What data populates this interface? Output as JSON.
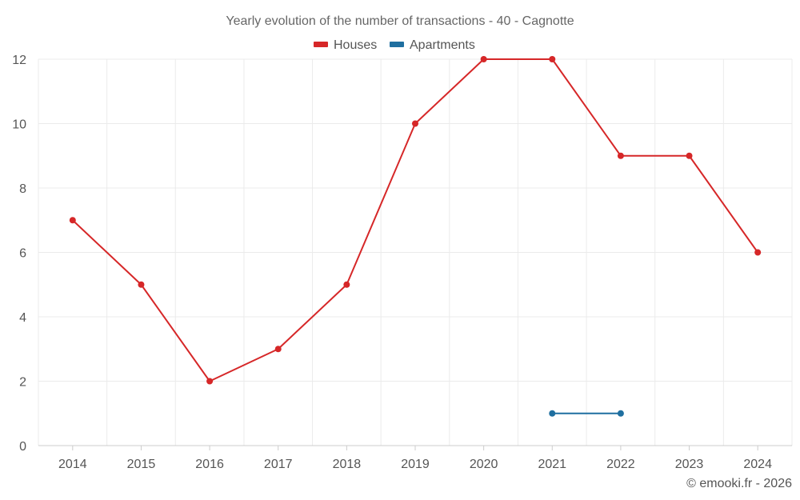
{
  "chart_data": {
    "type": "line",
    "title": "Yearly evolution of the number of transactions - 40 - Cagnotte",
    "categories": [
      "2014",
      "2015",
      "2016",
      "2017",
      "2018",
      "2019",
      "2020",
      "2021",
      "2022",
      "2023",
      "2024"
    ],
    "series": [
      {
        "name": "Houses",
        "color": "#d62728",
        "values": [
          7,
          5,
          2,
          3,
          5,
          10,
          12,
          12,
          9,
          9,
          6
        ]
      },
      {
        "name": "Apartments",
        "color": "#1f6fa0",
        "values": [
          null,
          null,
          null,
          null,
          null,
          null,
          null,
          1,
          1,
          null,
          null
        ]
      }
    ],
    "ylim": [
      0,
      12
    ],
    "yticks": [
      "0",
      "2",
      "4",
      "6",
      "8",
      "10",
      "12"
    ],
    "xlabel": "",
    "ylabel": "",
    "grid": true,
    "legend": "top-center"
  },
  "credit": "© emooki.fr - 2026"
}
